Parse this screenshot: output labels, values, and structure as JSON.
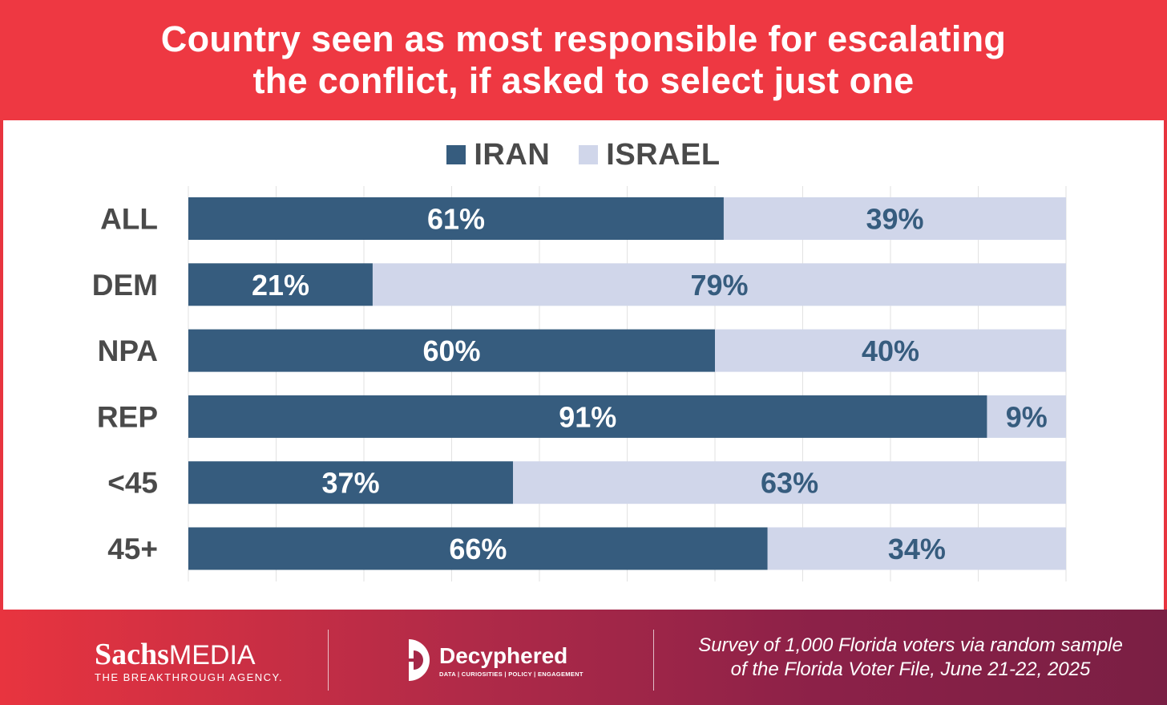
{
  "colors": {
    "header_bg": "#ee3842",
    "iran": "#365c7e",
    "israel": "#d0d6ea",
    "label_dark": "#4a4a4a",
    "israel_text": "#365c7e"
  },
  "header": {
    "title_line1": "Country seen as most responsible for escalating",
    "title_line2": "the conflict, if asked to select just one"
  },
  "chart_data": {
    "type": "bar",
    "orientation": "horizontal",
    "stacked": true,
    "title": "Country seen as most responsible for escalating the conflict, if asked to select just one",
    "categories": [
      "ALL",
      "DEM",
      "NPA",
      "REP",
      "<45",
      "45+"
    ],
    "series": [
      {
        "name": "IRAN",
        "values": [
          61,
          21,
          60,
          91,
          37,
          66
        ],
        "labels": [
          "61%",
          "21%",
          "60%",
          "91%",
          "37%",
          "66%"
        ]
      },
      {
        "name": "ISRAEL",
        "values": [
          39,
          79,
          40,
          9,
          63,
          34
        ],
        "labels": [
          "39%",
          "79%",
          "40%",
          "9%",
          "63%",
          "34%"
        ]
      }
    ],
    "xlim": [
      0,
      100
    ],
    "grid": true,
    "legend": "top-center"
  },
  "footer": {
    "brand1_bold": "Sachs",
    "brand1_thin": "MEDIA",
    "brand1_tagline": "THE BREAKTHROUGH AGENCY.",
    "brand2_name": "Decyphered",
    "brand2_tagline": "DATA | CURIOSITIES | POLICY | ENGAGEMENT",
    "source_line1": "Survey of 1,000 Florida voters via random sample",
    "source_line2": "of the Florida Voter File, June 21-22, 2025"
  },
  "icons": {
    "brand2_logo": "decyphered-logo-icon"
  }
}
